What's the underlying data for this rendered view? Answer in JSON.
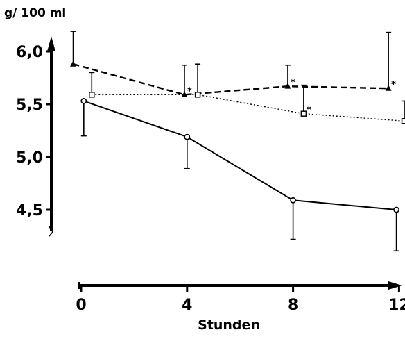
{
  "chart_data": {
    "type": "line",
    "ylabel": "g/ 100 ml",
    "xlabel": "Stunden",
    "x_ticks": [
      "0",
      "4",
      "8",
      "12"
    ],
    "y_ticks": [
      "6,0",
      "5,5",
      "5,0",
      "4,5"
    ],
    "xlim": [
      0,
      12
    ],
    "ylim": [
      4.2,
      6.2
    ],
    "grid": false,
    "legend": "none",
    "significance_marker": "*",
    "series": [
      {
        "style": "dashed",
        "marker": "filled-triangle",
        "x": [
          -0.3,
          3.9,
          7.8,
          11.6
        ],
        "y": [
          5.88,
          5.59,
          5.67,
          5.65
        ],
        "error_upper": [
          6.19,
          5.87,
          5.87,
          6.18
        ],
        "significant": [
          false,
          true,
          true,
          true
        ]
      },
      {
        "style": "dotted",
        "marker": "open-square",
        "x": [
          0.4,
          4.4,
          8.4,
          12.2
        ],
        "y": [
          5.59,
          5.59,
          5.41,
          5.34
        ],
        "error_upper": [
          5.8,
          5.88,
          5.68,
          5.53
        ],
        "significant": [
          false,
          false,
          true,
          false
        ]
      },
      {
        "style": "solid",
        "marker": "open-circle",
        "x": [
          0.1,
          4.0,
          8.0,
          11.9
        ],
        "y": [
          5.53,
          5.19,
          4.59,
          4.5
        ],
        "error_lower": [
          5.2,
          4.89,
          4.22,
          4.11
        ],
        "significant": [
          false,
          false,
          false,
          false
        ]
      }
    ]
  }
}
